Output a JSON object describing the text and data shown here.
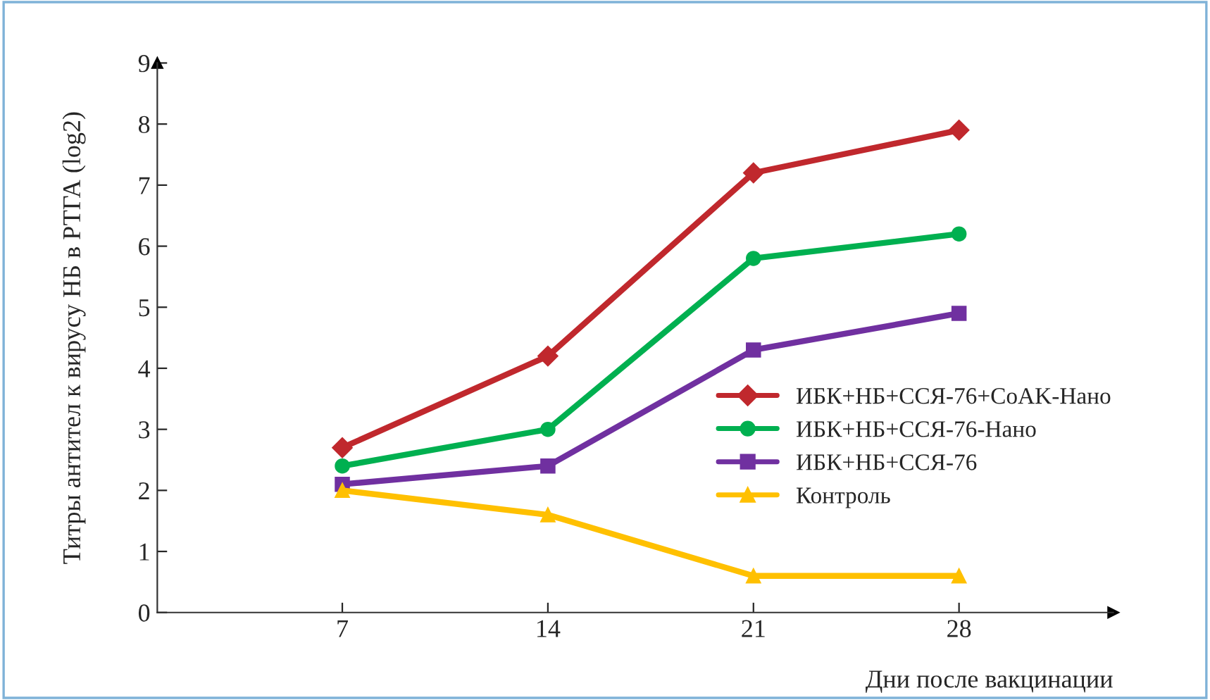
{
  "chart_data": {
    "type": "line",
    "xlabel": "Дни после вакцинации",
    "ylabel": "Титры антител к вирусу НБ в РТГА (log2)",
    "categories": [
      "7",
      "14",
      "21",
      "28"
    ],
    "series": [
      {
        "name": "ИБК+НБ+ССЯ-76+CoAK-Нано",
        "color": "#c0282d",
        "marker": "diamond",
        "values": [
          2.7,
          4.2,
          7.2,
          7.9
        ]
      },
      {
        "name": "ИБК+НБ+ССЯ-76-Нано",
        "color": "#00b050",
        "marker": "circle",
        "values": [
          2.4,
          3.0,
          5.8,
          6.2
        ]
      },
      {
        "name": "ИБК+НБ+ССЯ-76",
        "color": "#7030a0",
        "marker": "square",
        "values": [
          2.1,
          2.4,
          4.3,
          4.9
        ]
      },
      {
        "name": "Контроль",
        "color": "#ffc000",
        "marker": "triangle",
        "values": [
          2.0,
          1.6,
          0.6,
          0.6
        ]
      }
    ],
    "ylim": [
      0,
      9
    ],
    "yticks": [
      0,
      1,
      2,
      3,
      4,
      5,
      6,
      7,
      8,
      9
    ],
    "grid": false,
    "legend": "right",
    "line_style": "solid"
  }
}
